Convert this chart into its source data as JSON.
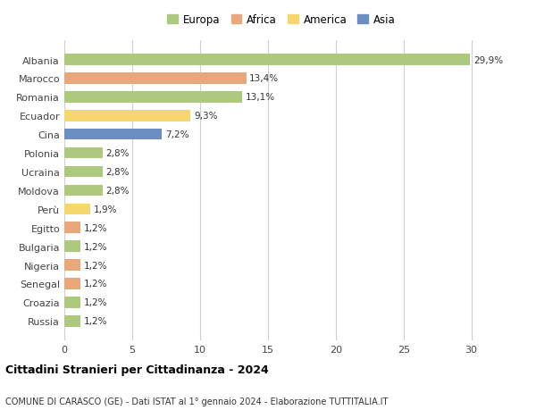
{
  "categories": [
    "Albania",
    "Marocco",
    "Romania",
    "Ecuador",
    "Cina",
    "Polonia",
    "Ucraina",
    "Moldova",
    "Perù",
    "Egitto",
    "Bulgaria",
    "Nigeria",
    "Senegal",
    "Croazia",
    "Russia"
  ],
  "values": [
    29.9,
    13.4,
    13.1,
    9.3,
    7.2,
    2.8,
    2.8,
    2.8,
    1.9,
    1.2,
    1.2,
    1.2,
    1.2,
    1.2,
    1.2
  ],
  "labels": [
    "29,9%",
    "13,4%",
    "13,1%",
    "9,3%",
    "7,2%",
    "2,8%",
    "2,8%",
    "2,8%",
    "1,9%",
    "1,2%",
    "1,2%",
    "1,2%",
    "1,2%",
    "1,2%",
    "1,2%"
  ],
  "continent": [
    "Europa",
    "Africa",
    "Europa",
    "America",
    "Asia",
    "Europa",
    "Europa",
    "Europa",
    "America",
    "Africa",
    "Europa",
    "Africa",
    "Africa",
    "Europa",
    "Europa"
  ],
  "colors": {
    "Europa": "#adc97e",
    "Africa": "#e8a87c",
    "America": "#f5d76e",
    "Asia": "#6b8fc2"
  },
  "legend": [
    {
      "label": "Europa",
      "color": "#adc97e"
    },
    {
      "label": "Africa",
      "color": "#e8a87c"
    },
    {
      "label": "America",
      "color": "#f5d76e"
    },
    {
      "label": "Asia",
      "color": "#6b8fc2"
    }
  ],
  "title": "Cittadini Stranieri per Cittadinanza - 2024",
  "subtitle": "COMUNE DI CARASCO (GE) - Dati ISTAT al 1° gennaio 2024 - Elaborazione TUTTITALIA.IT",
  "xlim": [
    0,
    32
  ],
  "xticks": [
    0,
    5,
    10,
    15,
    20,
    25,
    30
  ],
  "background_color": "#ffffff",
  "grid_color": "#d0d0d0",
  "bar_height": 0.6
}
